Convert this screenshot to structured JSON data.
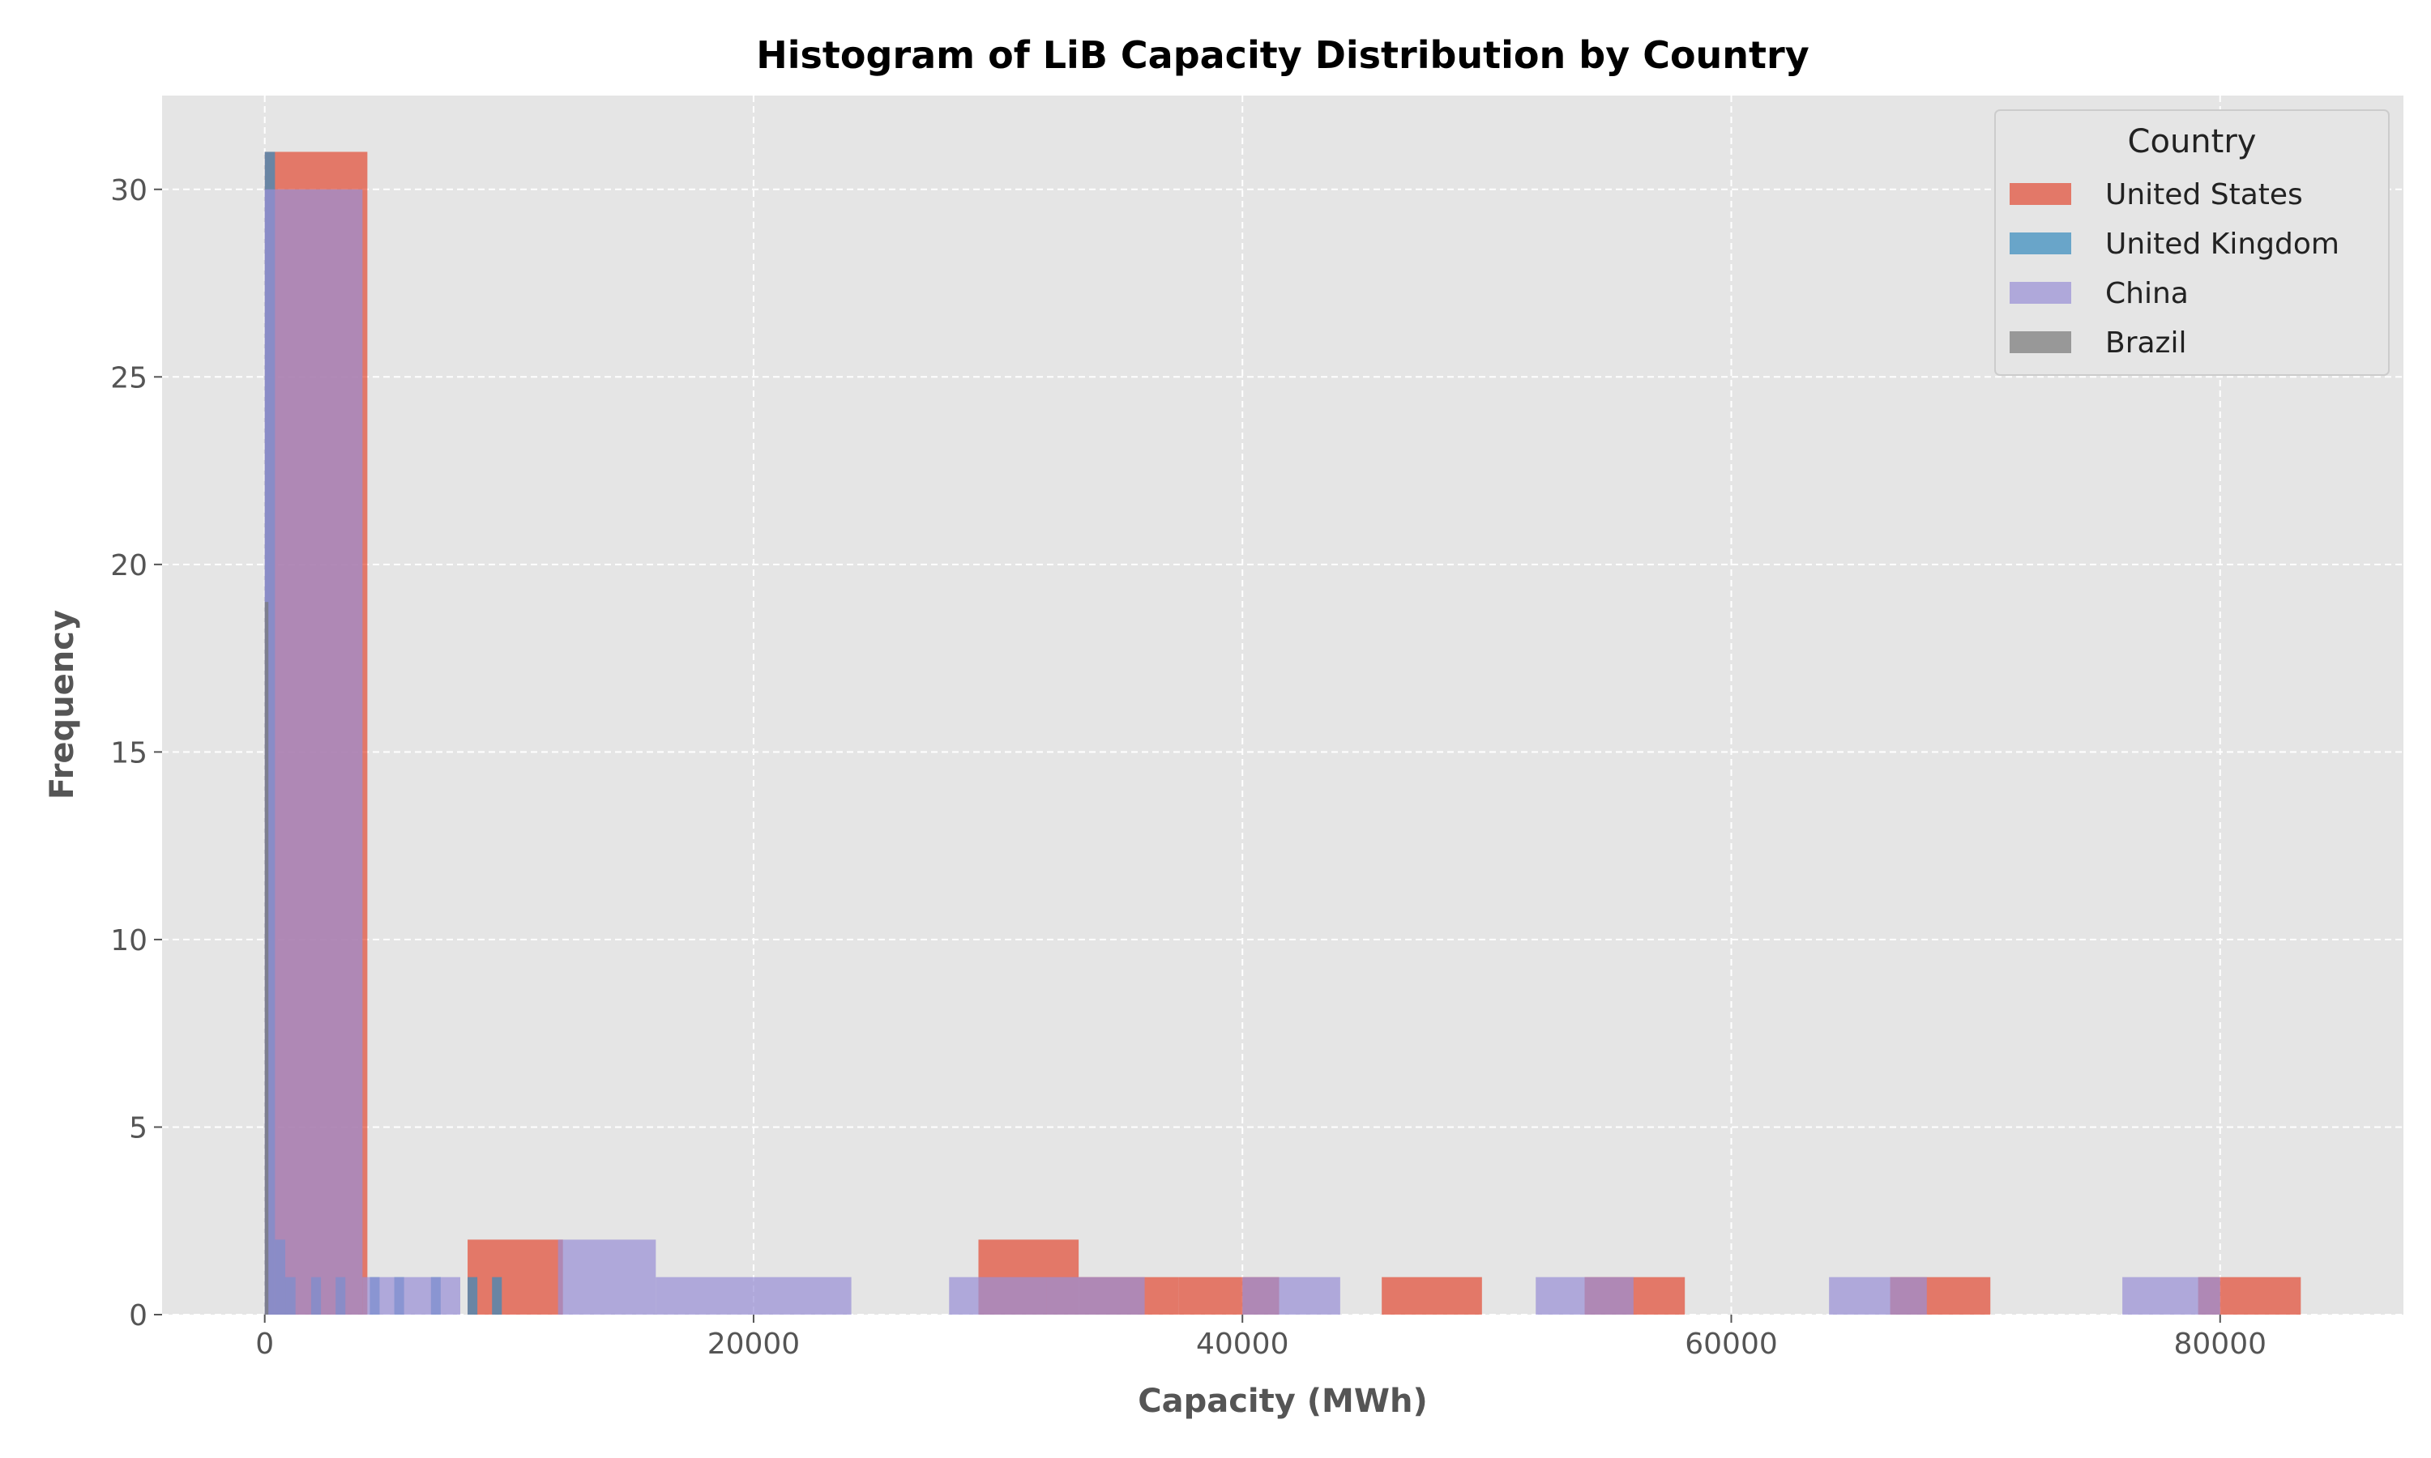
{
  "chart_data": {
    "type": "bar",
    "subtype": "overlaid-histogram",
    "title": "Histogram of LiB Capacity Distribution by Country",
    "xlabel": "Capacity (MWh)",
    "ylabel": "Frequency",
    "xlim": [
      -4200,
      87500
    ],
    "ylim": [
      0,
      32.5
    ],
    "xticks": [
      0,
      20000,
      40000,
      60000,
      80000
    ],
    "yticks": [
      0,
      5,
      10,
      15,
      20,
      25,
      30
    ],
    "grid": true,
    "legend": {
      "title": "Country",
      "position": "top-right"
    },
    "series": [
      {
        "name": "United States",
        "color": "#E24A33",
        "opacity": 0.7,
        "bins": [
          {
            "x0": 0,
            "x1": 4200,
            "count": 31
          },
          {
            "x0": 8300,
            "x1": 12200,
            "count": 2
          },
          {
            "x0": 29200,
            "x1": 33300,
            "count": 2
          },
          {
            "x0": 33300,
            "x1": 37400,
            "count": 1
          },
          {
            "x0": 37400,
            "x1": 41500,
            "count": 1
          },
          {
            "x0": 45700,
            "x1": 49800,
            "count": 1
          },
          {
            "x0": 54000,
            "x1": 58100,
            "count": 1
          },
          {
            "x0": 66500,
            "x1": 70600,
            "count": 1
          },
          {
            "x0": 79100,
            "x1": 83300,
            "count": 1
          }
        ]
      },
      {
        "name": "United Kingdom",
        "color": "#348ABD",
        "opacity": 0.7,
        "bins": [
          {
            "x0": 0,
            "x1": 420,
            "count": 31
          },
          {
            "x0": 420,
            "x1": 840,
            "count": 2
          },
          {
            "x0": 840,
            "x1": 1260,
            "count": 1
          },
          {
            "x0": 1900,
            "x1": 2300,
            "count": 1
          },
          {
            "x0": 2900,
            "x1": 3300,
            "count": 1
          },
          {
            "x0": 4300,
            "x1": 4700,
            "count": 1
          },
          {
            "x0": 5300,
            "x1": 5700,
            "count": 1
          },
          {
            "x0": 6800,
            "x1": 7200,
            "count": 1
          },
          {
            "x0": 8300,
            "x1": 8700,
            "count": 1
          },
          {
            "x0": 9300,
            "x1": 9700,
            "count": 1
          }
        ]
      },
      {
        "name": "China",
        "color": "#988ED5",
        "opacity": 0.7,
        "bins": [
          {
            "x0": 0,
            "x1": 4000,
            "count": 30
          },
          {
            "x0": 4000,
            "x1": 8000,
            "count": 1
          },
          {
            "x0": 12000,
            "x1": 16000,
            "count": 2
          },
          {
            "x0": 16000,
            "x1": 20000,
            "count": 1
          },
          {
            "x0": 20000,
            "x1": 24000,
            "count": 1
          },
          {
            "x0": 28000,
            "x1": 32000,
            "count": 1
          },
          {
            "x0": 32000,
            "x1": 36000,
            "count": 1
          },
          {
            "x0": 40000,
            "x1": 44000,
            "count": 1
          },
          {
            "x0": 52000,
            "x1": 56000,
            "count": 1
          },
          {
            "x0": 64000,
            "x1": 68000,
            "count": 1
          },
          {
            "x0": 76000,
            "x1": 80000,
            "count": 1
          }
        ]
      },
      {
        "name": "Brazil",
        "color": "#777777",
        "opacity": 0.7,
        "bins": [
          {
            "x0": 0,
            "x1": 150,
            "count": 19
          }
        ]
      }
    ]
  }
}
